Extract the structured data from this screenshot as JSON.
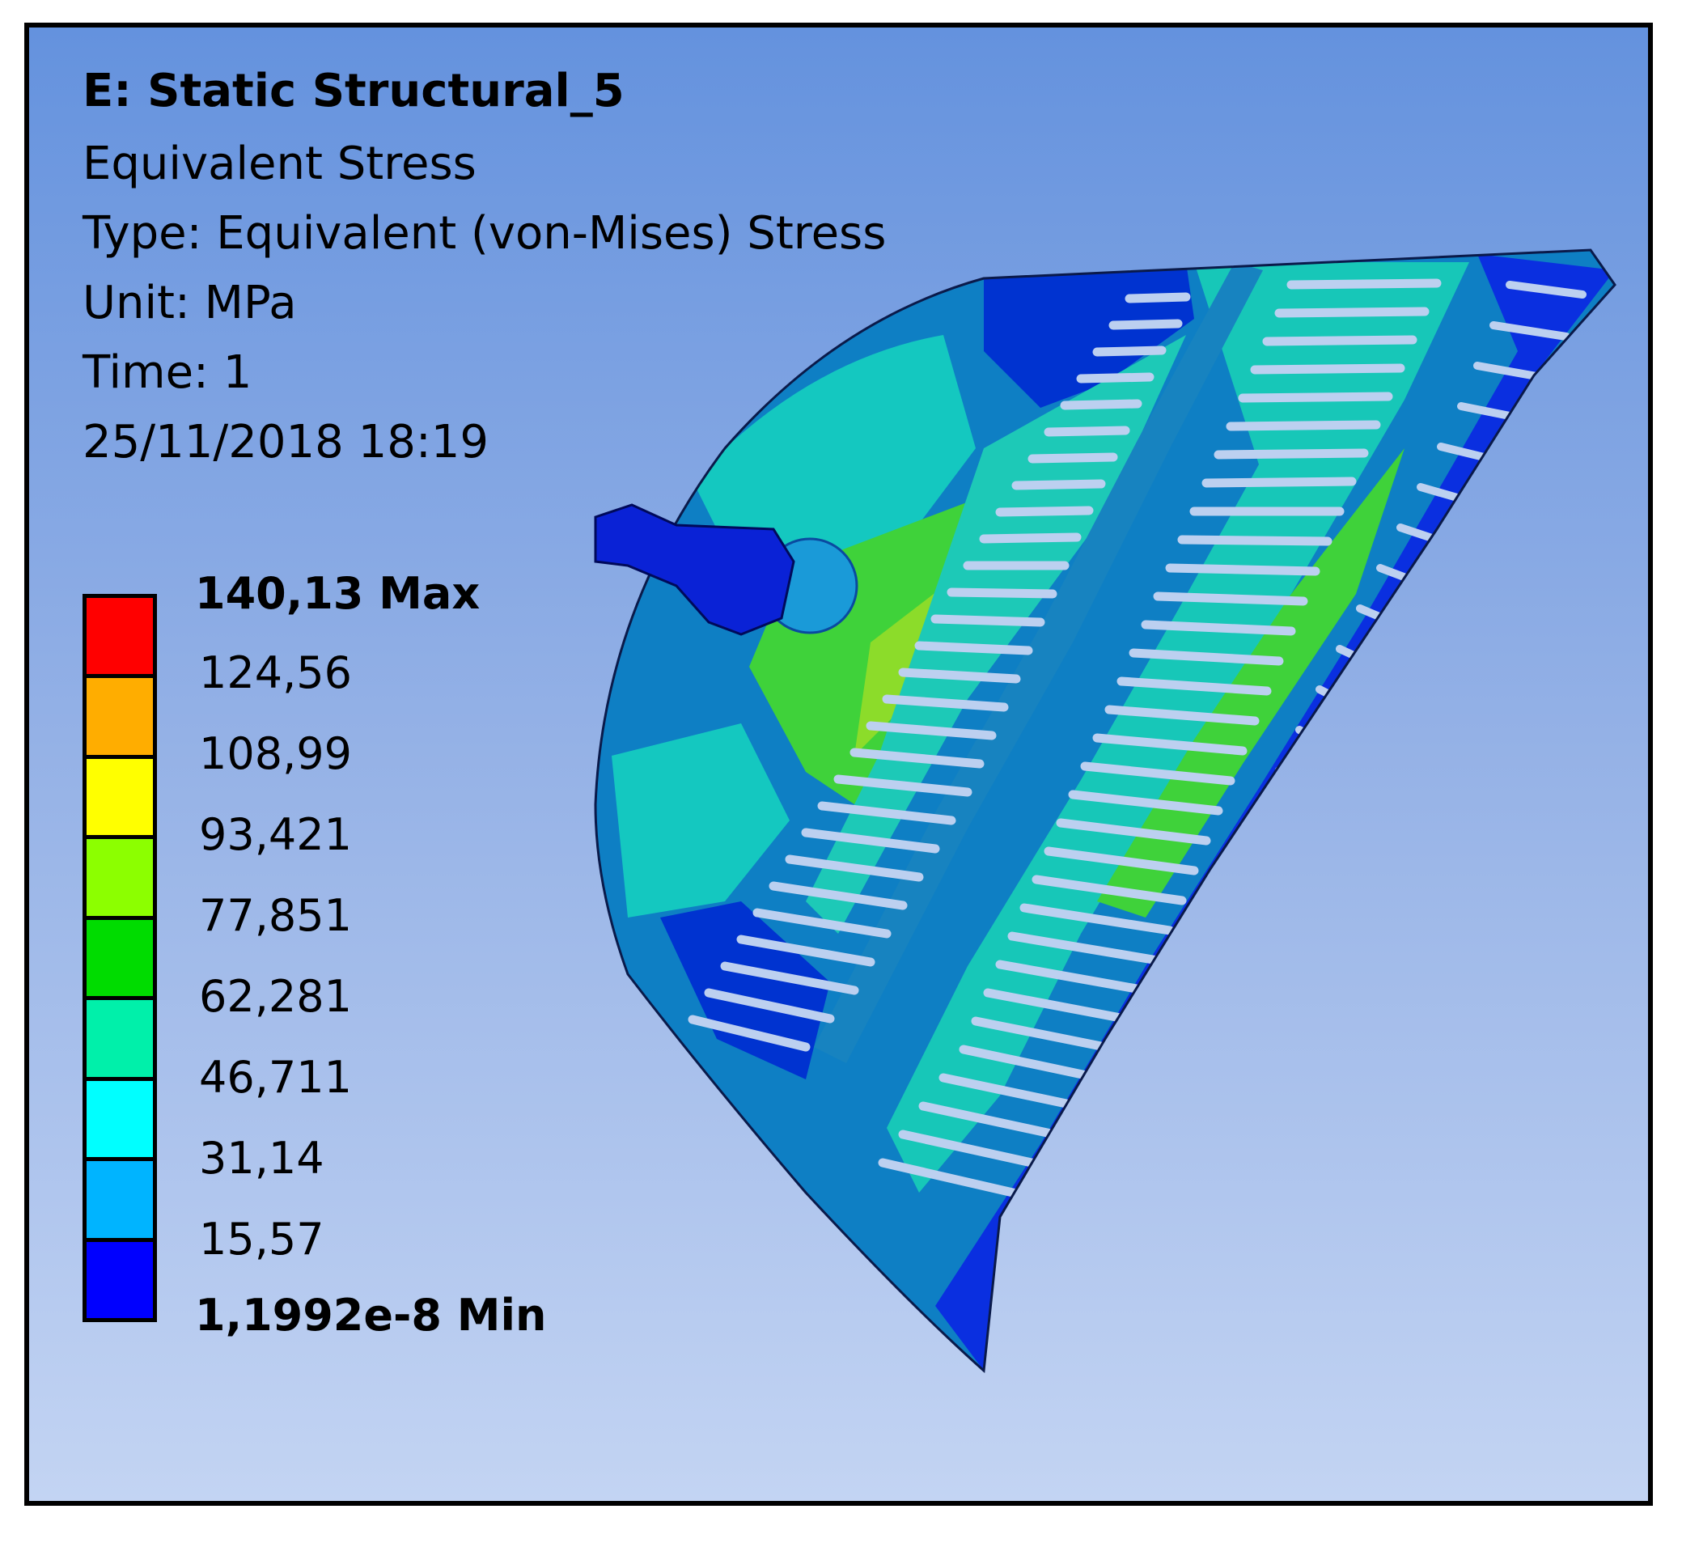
{
  "header": {
    "title": "E: Static Structural_5",
    "result": "Equivalent Stress",
    "type": "Type: Equivalent (von-Mises) Stress",
    "unit": "Unit: MPa",
    "time": "Time: 1",
    "date": "25/11/2018 18:19"
  },
  "legend": {
    "max_label": "140,13 Max",
    "ticks": [
      "124,56",
      "108,99",
      "93,421",
      "77,851",
      "62,281",
      "46,711",
      "31,14",
      "15,57"
    ],
    "min_label": "1,1992e-8 Min",
    "band_colors": [
      "#ff0000",
      "#ffad00",
      "#ffff00",
      "#8cff00",
      "#00dc00",
      "#00f0aa",
      "#00ffff",
      "#00b4ff",
      "#0000ff"
    ]
  }
}
